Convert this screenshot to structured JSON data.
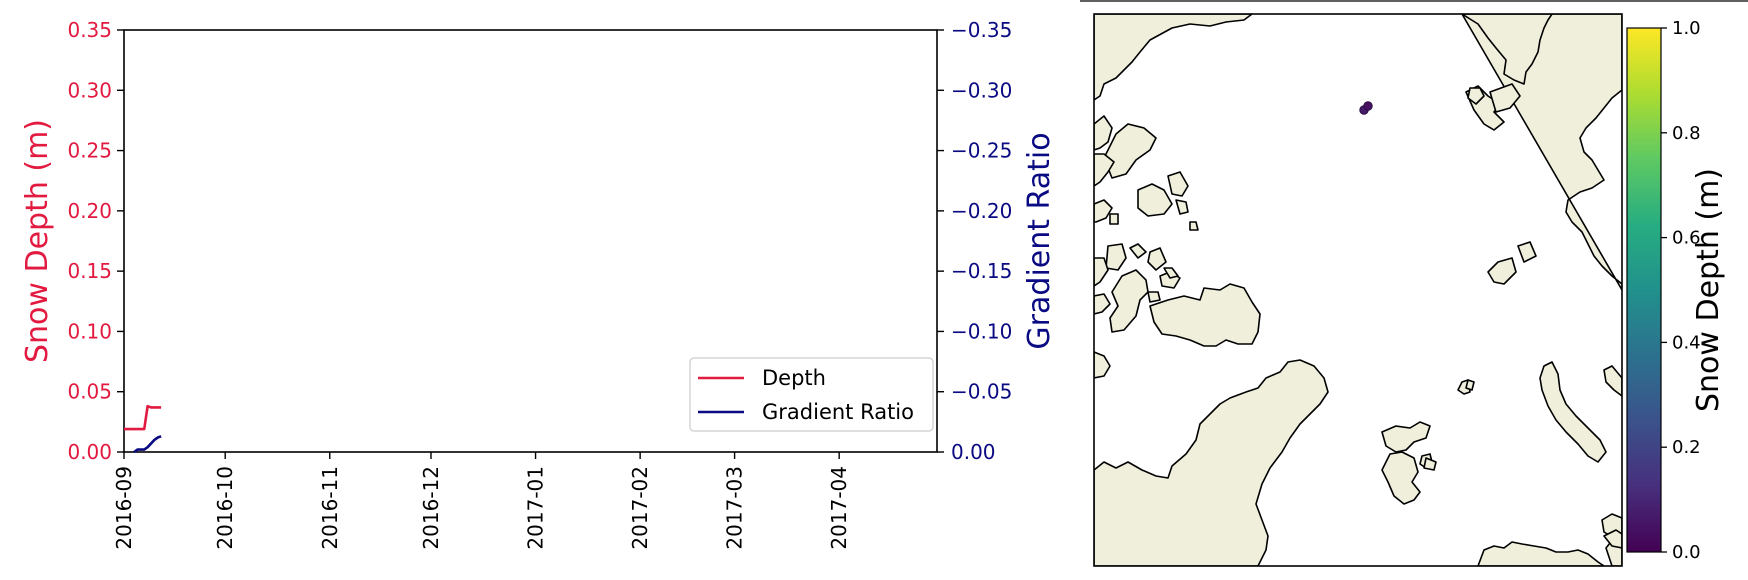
{
  "chart_data": [
    {
      "type": "line",
      "x_dates": [
        "2016-09-01",
        "2016-09-02",
        "2016-09-03",
        "2016-09-04",
        "2016-09-05",
        "2016-09-06",
        "2016-09-07",
        "2016-09-08",
        "2016-09-09",
        "2016-09-10",
        "2016-09-11",
        "2016-09-12"
      ],
      "series": [
        {
          "name": "Depth",
          "axis": "left",
          "color": "#e31a40",
          "values": [
            0.019,
            0.019,
            0.019,
            0.019,
            0.019,
            0.019,
            0.019,
            0.038,
            0.037,
            0.037,
            0.037,
            0.037
          ]
        },
        {
          "name": "Gradient Ratio",
          "axis": "right",
          "color": "#0a0a82",
          "values": [
            null,
            null,
            null,
            0.0,
            -0.002,
            -0.002,
            -0.002,
            -0.004,
            -0.007,
            -0.01,
            -0.012,
            -0.013
          ]
        }
      ],
      "xlim": [
        "2016-09-01",
        "2017-04-30"
      ],
      "x_tick_labels": [
        "2016-09",
        "2016-10",
        "2016-11",
        "2016-12",
        "2017-01",
        "2017-02",
        "2017-03",
        "2017-04"
      ],
      "x_tick_dates": [
        "2016-09-01",
        "2016-10-01",
        "2016-11-01",
        "2016-12-01",
        "2017-01-01",
        "2017-02-01",
        "2017-03-01",
        "2017-04-01"
      ],
      "ylabel": "Snow Depth (m)",
      "ylim": [
        0,
        0.35
      ],
      "y_tick_labels": [
        "0.00",
        "0.05",
        "0.10",
        "0.15",
        "0.20",
        "0.25",
        "0.30",
        "0.35"
      ],
      "y2label": "Gradient Ratio",
      "y2lim": [
        0,
        -0.35
      ],
      "y2_tick_labels": [
        "0.00",
        "−0.05",
        "−0.10",
        "−0.15",
        "−0.20",
        "−0.25",
        "−0.30",
        "−0.35"
      ],
      "legend": {
        "position": "lower right",
        "entries": [
          "Depth",
          "Gradient Ratio"
        ]
      },
      "left_axis_color": "#e31a40",
      "right_axis_color": "#0a0a82",
      "grid": false
    },
    {
      "type": "map",
      "projection": "north polar stereographic",
      "land_color": "#efefdc",
      "ocean_color": "#ffffff",
      "points": [
        {
          "snow_depth": 0.02
        },
        {
          "snow_depth": 0.04
        }
      ],
      "colorbar": {
        "label": "Snow Depth (m)",
        "colormap": "viridis",
        "range": [
          0.0,
          1.0
        ],
        "tick_labels": [
          "0.0",
          "0.2",
          "0.4",
          "0.6",
          "0.8",
          "1.0"
        ]
      }
    }
  ]
}
